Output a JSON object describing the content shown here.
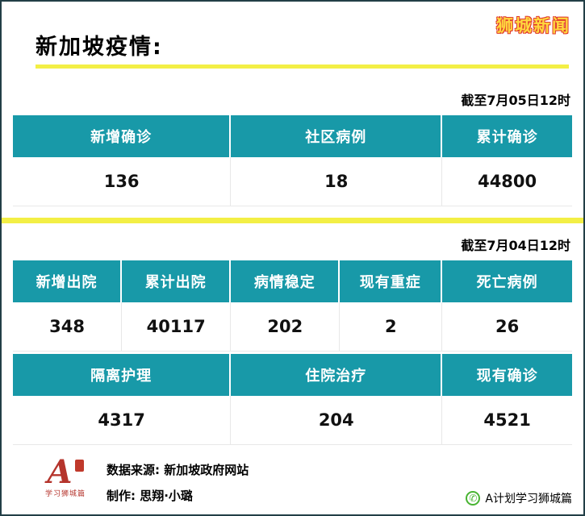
{
  "brand": "狮城新闻",
  "title": "新加坡疫情:",
  "section_top": {
    "as_of": "截至7月05日12时",
    "headers": [
      "新增确诊",
      "社区病例",
      "累计确诊"
    ],
    "values": [
      "136",
      "18",
      "44800"
    ]
  },
  "section_bottom": {
    "as_of": "截至7月04日12时",
    "row1": {
      "headers": [
        "新增出院",
        "累计出院",
        "病情稳定",
        "现有重症",
        "死亡病例"
      ],
      "values": [
        "348",
        "40117",
        "202",
        "2",
        "26"
      ]
    },
    "row2": {
      "headers": [
        "隔离护理",
        "住院治疗",
        "现有确诊"
      ],
      "values": [
        "4317",
        "204",
        "4521"
      ]
    }
  },
  "footer": {
    "logo_main": "A",
    "logo_sub": "学习狮城篇",
    "source_line": "数据来源: 新加坡政府网站",
    "credit_line": "制作: 思翔·小璐",
    "wechat_label": "A计划学习狮城篇"
  },
  "icons": {
    "wechat": "✆"
  },
  "colors": {
    "teal": "#1899A8",
    "yellow": "#F3EF45",
    "brand_fill": "#FFD83E",
    "brand_outline": "#E03A2F",
    "logo_red": "#B5342C",
    "wechat_green": "#48B432"
  },
  "chart_data": [
    {
      "type": "table",
      "title": "截至7月05日12时",
      "categories": [
        "新增确诊",
        "社区病例",
        "累计确诊"
      ],
      "values": [
        136,
        18,
        44800
      ]
    },
    {
      "type": "table",
      "title": "截至7月04日12时",
      "categories": [
        "新增出院",
        "累计出院",
        "病情稳定",
        "现有重症",
        "死亡病例"
      ],
      "values": [
        348,
        40117,
        202,
        2,
        26
      ]
    },
    {
      "type": "table",
      "title": "截至7月04日12时",
      "categories": [
        "隔离护理",
        "住院治疗",
        "现有确诊"
      ],
      "values": [
        4317,
        204,
        4521
      ]
    }
  ]
}
